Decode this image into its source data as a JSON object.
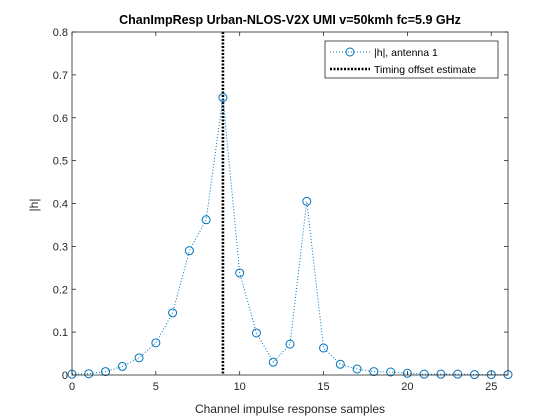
{
  "chart_data": {
    "type": "line",
    "title": "ChanImpResp Urban-NLOS-V2X UMI v=50kmh fc=5.9 GHz",
    "xlabel": "Channel impulse response samples",
    "ylabel": "|h|",
    "xlim": [
      0,
      26
    ],
    "ylim": [
      0,
      0.8
    ],
    "xticks": [
      0,
      5,
      10,
      15,
      20,
      25
    ],
    "yticks": [
      0,
      0.1,
      0.2,
      0.3,
      0.4,
      0.5,
      0.6,
      0.7,
      0.8
    ],
    "grid": false,
    "legend_position": "top-right",
    "series": [
      {
        "name": "|h|, antenna 1",
        "color": "#0072BD",
        "marker": "circle",
        "line_style": "dotted",
        "x": [
          0,
          1,
          2,
          3,
          4,
          5,
          6,
          7,
          8,
          9,
          10,
          11,
          12,
          13,
          14,
          15,
          16,
          17,
          18,
          19,
          20,
          21,
          22,
          23,
          24,
          25,
          26
        ],
        "y": [
          0.002,
          0.003,
          0.008,
          0.02,
          0.04,
          0.075,
          0.145,
          0.29,
          0.362,
          0.647,
          0.238,
          0.098,
          0.03,
          0.072,
          0.405,
          0.063,
          0.025,
          0.014,
          0.008,
          0.007,
          0.004,
          0.002,
          0.002,
          0.002,
          0.001,
          0.001,
          0.001
        ]
      }
    ],
    "reference_lines": [
      {
        "name": "Timing offset estimate",
        "orientation": "vertical",
        "x": 9,
        "color": "#000000",
        "line_style": "dotted"
      }
    ]
  }
}
